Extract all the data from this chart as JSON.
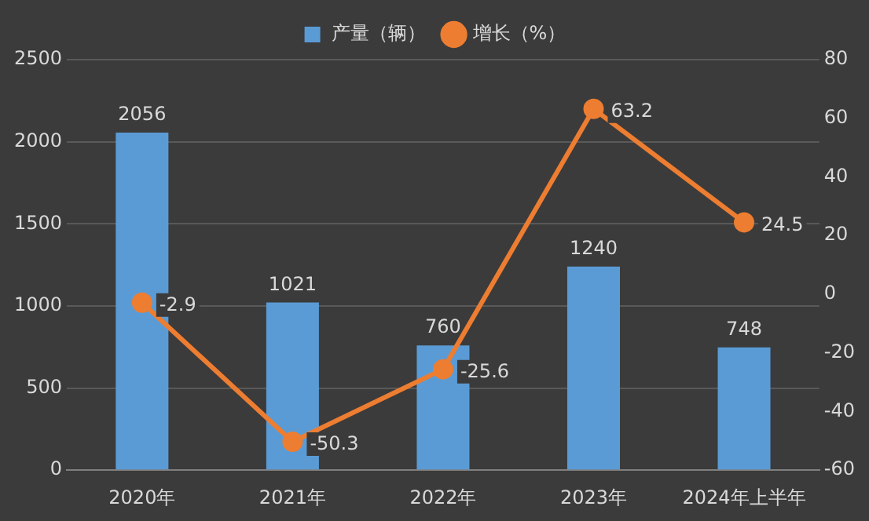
{
  "chart_data": {
    "type": "bar",
    "categories": [
      "2020年",
      "2021年",
      "2022年",
      "2023年",
      "2024年上半年"
    ],
    "series": [
      {
        "name": "产量（辆）",
        "color": "#5b9bd5",
        "values": [
          2056,
          1021,
          760,
          1240,
          748
        ]
      },
      {
        "name": "增长（%）",
        "type": "line",
        "axis": "y2",
        "color": "#ed7d31",
        "values": [
          -2.9,
          -50.3,
          -25.6,
          63.2,
          24.5
        ]
      }
    ],
    "ylim": [
      0,
      2500
    ],
    "yticks": [
      0,
      500,
      1000,
      1500,
      2000,
      2500
    ],
    "y2lim": [
      -60,
      80
    ],
    "y2ticks": [
      -60,
      -40,
      -20,
      0,
      20,
      40,
      60,
      80
    ],
    "grid": "y",
    "legend": "top",
    "marker": "circle",
    "data_labels": true
  }
}
